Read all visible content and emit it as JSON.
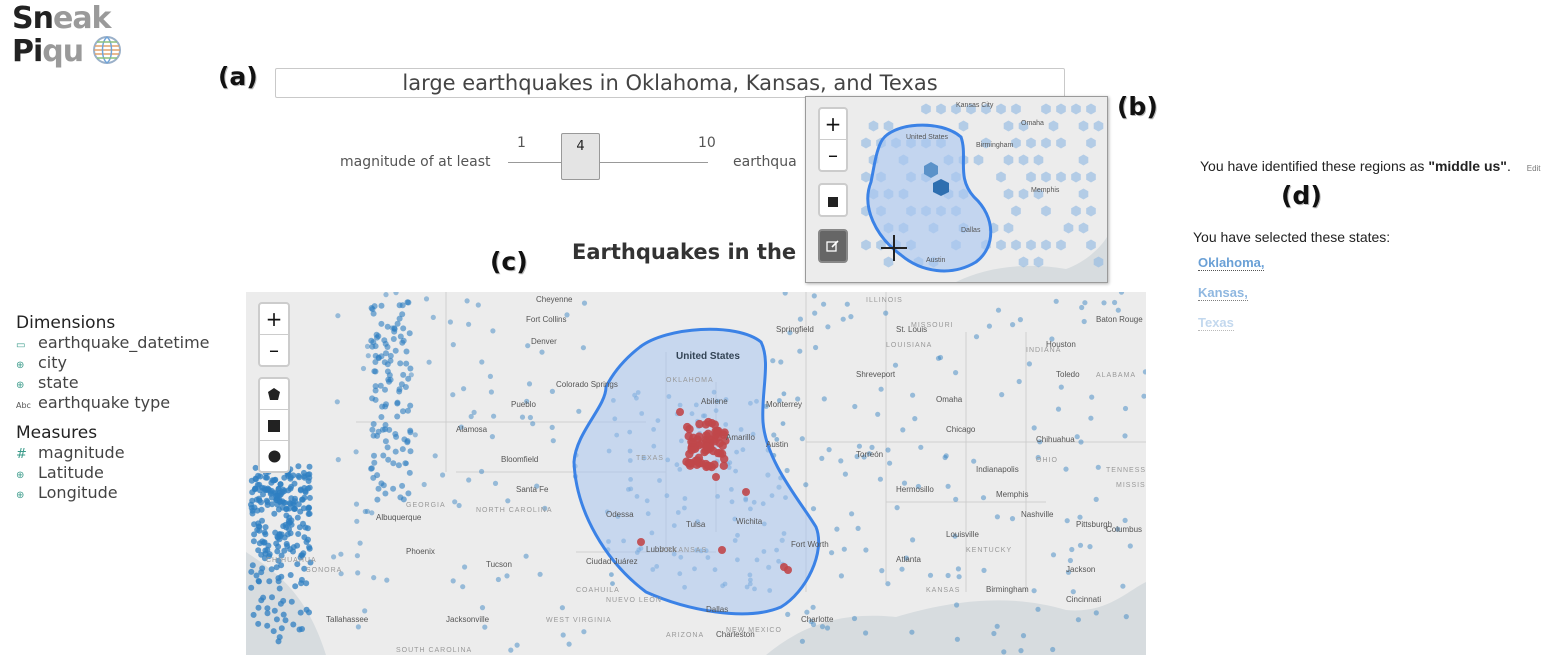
{
  "logo": {
    "line1_dark": "Sn",
    "line1_grey": "eak",
    "line2_dark": "Pi",
    "line2_grey": "qu"
  },
  "annotations": {
    "a": "(a)",
    "b": "(b)",
    "c": "(c)",
    "d": "(d)"
  },
  "query": {
    "value": "large earthquakes in Oklahoma, Kansas, and Texas"
  },
  "slider": {
    "label_left": "magnitude of at least",
    "min": "1",
    "value": "4",
    "max": "10",
    "label_right": "earthqua"
  },
  "chart": {
    "title": "Earthquakes in the U"
  },
  "sidebar": {
    "dimensions_title": "Dimensions",
    "dimensions": [
      {
        "icon": "calendar-icon",
        "glyph": "▭",
        "label": "earthquake_datetime"
      },
      {
        "icon": "globe-icon",
        "glyph": "⊕",
        "label": "city"
      },
      {
        "icon": "globe-icon",
        "glyph": "⊕",
        "label": "state"
      },
      {
        "icon": "text-type-icon",
        "glyph": "Abc",
        "label": "earthquake type"
      }
    ],
    "measures_title": "Measures",
    "measures": [
      {
        "icon": "hash-icon",
        "glyph": "#",
        "label": "magnitude"
      },
      {
        "icon": "globe-icon",
        "glyph": "⊕",
        "label": "Latitude"
      },
      {
        "icon": "globe-icon",
        "glyph": "⊕",
        "label": "Longitude"
      }
    ]
  },
  "right_panel": {
    "identified_prefix": "You have identified these regions as ",
    "region_name": "\"middle us\"",
    "identified_suffix": ".",
    "edit": "Edit",
    "selected_intro": "You have selected these states:",
    "states": [
      "Oklahoma,",
      "Kansas,",
      "Texas"
    ]
  },
  "map": {
    "country_label": "United States",
    "labels": [
      "Cheyenne",
      "Fort Collins",
      "Denver",
      "Colorado Springs",
      "Pueblo",
      "Alamosa",
      "Bloomfield",
      "Santa Fe",
      "Albuquerque",
      "Phoenix",
      "Tucson",
      "Ciudad Juárez",
      "Odessa",
      "Lubbock",
      "Abilene",
      "Amarillo",
      "Wichita",
      "Tulsa",
      "Dallas",
      "Fort Worth",
      "Austin",
      "Shreveport",
      "Springfield",
      "St. Louis",
      "Omaha",
      "Chicago",
      "Indianapolis",
      "Louisville",
      "Nashville",
      "Memphis",
      "Atlanta",
      "Birmingham",
      "Jackson",
      "Baton Rouge",
      "Houston",
      "Toledo",
      "Pittsburgh",
      "Columbus",
      "Cincinnati",
      "Charlotte",
      "Charleston",
      "Jacksonville",
      "Tallahassee",
      "Monterrey",
      "Torreón",
      "Chihuahua",
      "Hermosillo",
      "KANSAS",
      "OKLAHOMA",
      "TEXAS",
      "ARKANSAS",
      "LOUISIANA",
      "MISSOURI",
      "ILLINOIS",
      "INDIANA",
      "OHIO",
      "KENTUCKY",
      "TENNESSEE",
      "MISSISSIPPI",
      "ALABAMA",
      "GEORGIA",
      "NORTH CAROLINA",
      "SOUTH CAROLINA",
      "WEST VIRGINIA",
      "ARIZONA",
      "NEW MEXICO",
      "SONORA",
      "CHIHUAHUA",
      "COAHUILA",
      "NUEVO LEÓN"
    ],
    "inset_labels": [
      "United States",
      "Dallas",
      "Austin",
      "Memphis",
      "Birmingham",
      "Kansas City",
      "Omaha"
    ]
  },
  "colors": {
    "accent": "#3b82e6",
    "region_fill": "#a9c6f1",
    "dot_blue": "#2f7fc1",
    "dot_red": "#c0474a"
  }
}
